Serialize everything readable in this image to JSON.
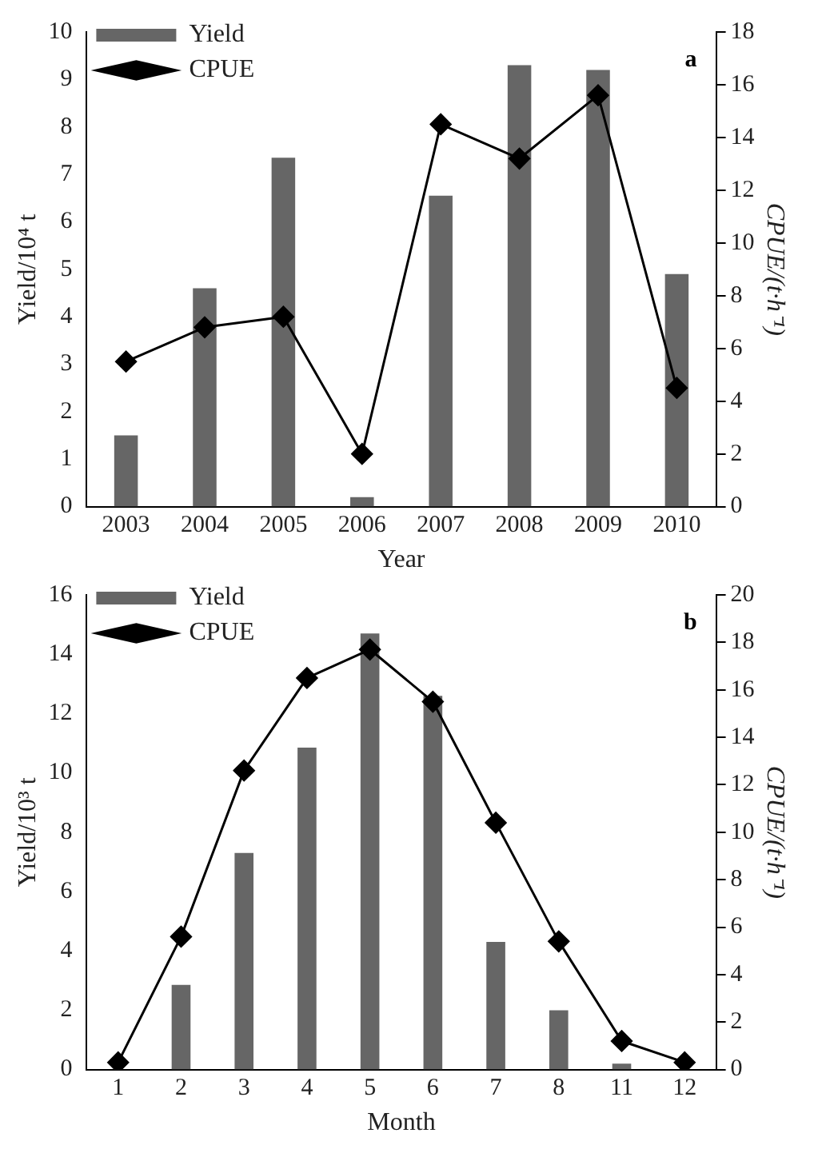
{
  "chart_data": [
    {
      "type": "bar",
      "categories": [
        "2003",
        "2004",
        "2005",
        "2006",
        "2007",
        "2008",
        "2009",
        "2010"
      ],
      "xlabel": "Year",
      "ylabel": "Yield/10⁴ t",
      "y2label": "CPUE/(t·h⁻¹)",
      "annotations": [
        "a"
      ],
      "series": [
        {
          "name": "Yield",
          "color": "#666666",
          "values": [
            1.5,
            4.6,
            7.35,
            0.2,
            6.55,
            9.3,
            9.2,
            4.9
          ]
        },
        {
          "name": "CPUE",
          "type": "line",
          "axis": "y2",
          "color": "#000000",
          "marker": "diamond",
          "values": [
            5.5,
            6.8,
            7.2,
            2.0,
            14.5,
            13.2,
            15.6,
            4.5
          ]
        }
      ],
      "ylim": [
        0,
        10
      ],
      "yticks": [
        0,
        1,
        2,
        3,
        4,
        5,
        6,
        7,
        8,
        9,
        10
      ],
      "y2lim": [
        0,
        18
      ],
      "y2ticks": [
        0,
        2,
        4,
        6,
        8,
        10,
        12,
        14,
        16,
        18
      ],
      "legend": "top left",
      "grid": false
    },
    {
      "type": "bar",
      "categories": [
        "1",
        "2",
        "3",
        "4",
        "5",
        "6",
        "7",
        "8",
        "11",
        "12"
      ],
      "xlabel": "Month",
      "ylabel": "Yield/10³ t",
      "y2label": "CPUE/(t·h⁻¹)",
      "annotations": [
        "b"
      ],
      "series": [
        {
          "name": "Yield",
          "color": "#666666",
          "values": [
            null,
            2.85,
            7.3,
            10.85,
            14.7,
            12.6,
            4.3,
            2.0,
            0.2,
            null
          ]
        },
        {
          "name": "CPUE",
          "type": "line",
          "axis": "y2",
          "color": "#000000",
          "marker": "diamond",
          "values": [
            0.3,
            5.6,
            12.6,
            16.5,
            17.7,
            15.5,
            10.4,
            5.4,
            1.2,
            0.3
          ]
        }
      ],
      "ylim": [
        0,
        16
      ],
      "yticks": [
        0,
        2,
        4,
        6,
        8,
        10,
        12,
        14,
        16
      ],
      "y2lim": [
        0,
        20
      ],
      "y2ticks": [
        0,
        2,
        4,
        6,
        8,
        10,
        12,
        14,
        16,
        18,
        20
      ],
      "legend": "top left",
      "grid": false
    }
  ]
}
